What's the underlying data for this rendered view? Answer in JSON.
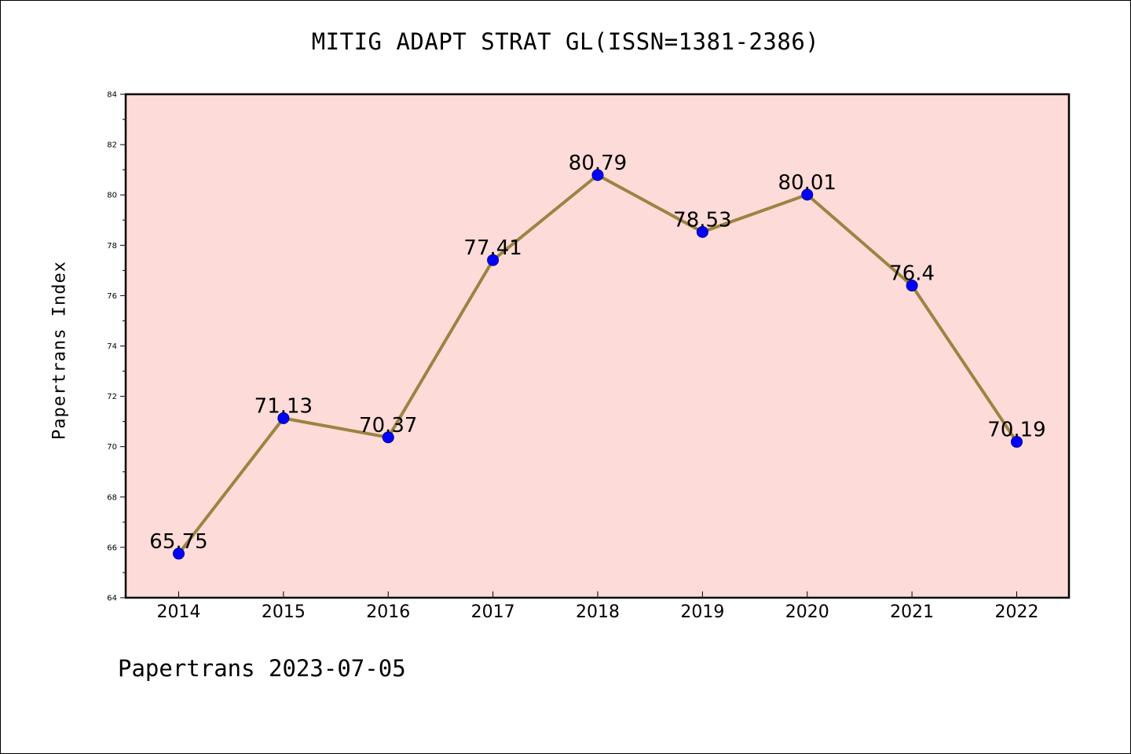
{
  "chart_data": {
    "type": "line",
    "title": "MITIG ADAPT STRAT GL(ISSN=1381-2386)",
    "ylabel": "Papertrans Index",
    "xlabel": "",
    "footer": "Papertrans 2023-07-05",
    "categories": [
      "2014",
      "2015",
      "2016",
      "2017",
      "2018",
      "2019",
      "2020",
      "2021",
      "2022"
    ],
    "series": [
      {
        "values": [
          65.75,
          71.13,
          70.37,
          77.41,
          80.79,
          78.53,
          80.01,
          76.4,
          70.19
        ]
      }
    ],
    "data_labels": [
      "65.75",
      "71.13",
      "70.37",
      "77.41",
      "80.79",
      "78.53",
      "80.01",
      "76.4",
      "70.19"
    ],
    "ylim": [
      64,
      84
    ],
    "yticks": [
      64,
      66,
      68,
      70,
      72,
      74,
      76,
      78,
      80,
      82,
      84
    ],
    "grid": false,
    "colors": {
      "plot_background": "#fddbd8",
      "line": "#9b8442",
      "marker": "#0000ff",
      "marker_edge": "#00008b"
    }
  }
}
